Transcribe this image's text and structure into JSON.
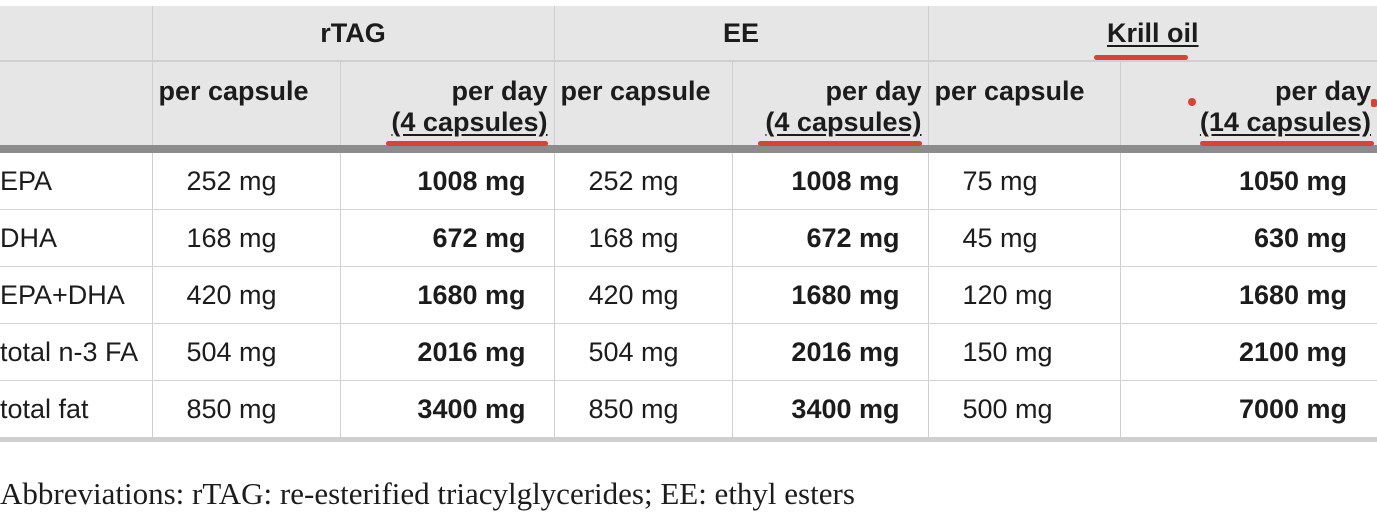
{
  "table": {
    "groups": [
      "",
      "rTAG",
      "EE",
      "Krill oil"
    ],
    "subheaders": [
      {
        "line1": "",
        "line2": ""
      },
      {
        "line1": "per capsule",
        "line2": ""
      },
      {
        "line1": "per day",
        "line2": "(4 capsules)"
      },
      {
        "line1": "per capsule",
        "line2": ""
      },
      {
        "line1": "per day",
        "line2": "(4 capsules)"
      },
      {
        "line1": "per capsule",
        "line2": ""
      },
      {
        "line1": "per day",
        "line2": "(14 capsules)"
      }
    ],
    "rows": [
      {
        "label": "EPA",
        "cells": [
          "252 mg",
          "1008 mg",
          "252 mg",
          "1008 mg",
          "75 mg",
          "1050 mg"
        ]
      },
      {
        "label": "DHA",
        "cells": [
          "168 mg",
          "672 mg",
          "168 mg",
          "672 mg",
          "45 mg",
          "630 mg"
        ]
      },
      {
        "label": "EPA+DHA",
        "cells": [
          "420 mg",
          "1680 mg",
          "420 mg",
          "1680 mg",
          "120 mg",
          "1680 mg"
        ]
      },
      {
        "label": "total n-3 FA",
        "cells": [
          "504 mg",
          "2016 mg",
          "504 mg",
          "2016 mg",
          "150 mg",
          "2100 mg"
        ]
      },
      {
        "label": "total fat",
        "cells": [
          "850 mg",
          "3400 mg",
          "850 mg",
          "3400 mg",
          "500 mg",
          "7000 mg"
        ]
      }
    ]
  },
  "footnote": "Abbreviations: rTAG: re-esterified triacylglycerides; EE: ethyl esters",
  "colors": {
    "header_bg": "#e6e6e6",
    "annotation_red": "#d9442f",
    "header_divider": "#8c8c8c"
  }
}
